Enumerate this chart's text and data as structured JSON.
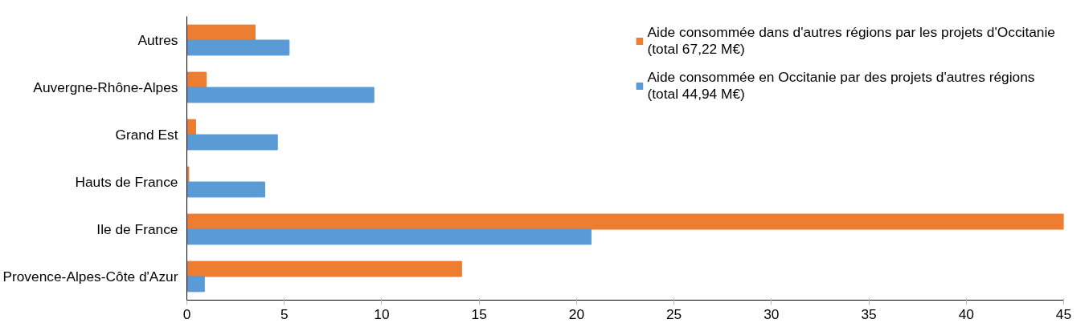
{
  "chart_data": {
    "type": "bar",
    "orientation": "horizontal",
    "categories": [
      "Autres",
      "Auvergne-Rhône-Alpes",
      "Grand Est",
      "Hauts de France",
      "Ile de France",
      "Provence-Alpes-Côte d'Azur"
    ],
    "series": [
      {
        "name": "Aide consommée dans d'autres régions par les projets d'Occitanie (total 67,22 M€)",
        "color": "#ed7d31",
        "values": [
          3.5,
          1.0,
          0.45,
          0.1,
          45,
          14.1
        ]
      },
      {
        "name": "Aide consommée en Occitanie par des projets d'autres régions (total 44,94 M€)",
        "color": "#5b9bd5",
        "values": [
          5.25,
          9.6,
          4.65,
          4.0,
          20.75,
          0.9
        ]
      }
    ],
    "xlim": [
      0,
      45
    ],
    "xticks": [
      0,
      5,
      10,
      15,
      20,
      25,
      30,
      35,
      40,
      45
    ],
    "grid": false,
    "legend": "top right"
  }
}
